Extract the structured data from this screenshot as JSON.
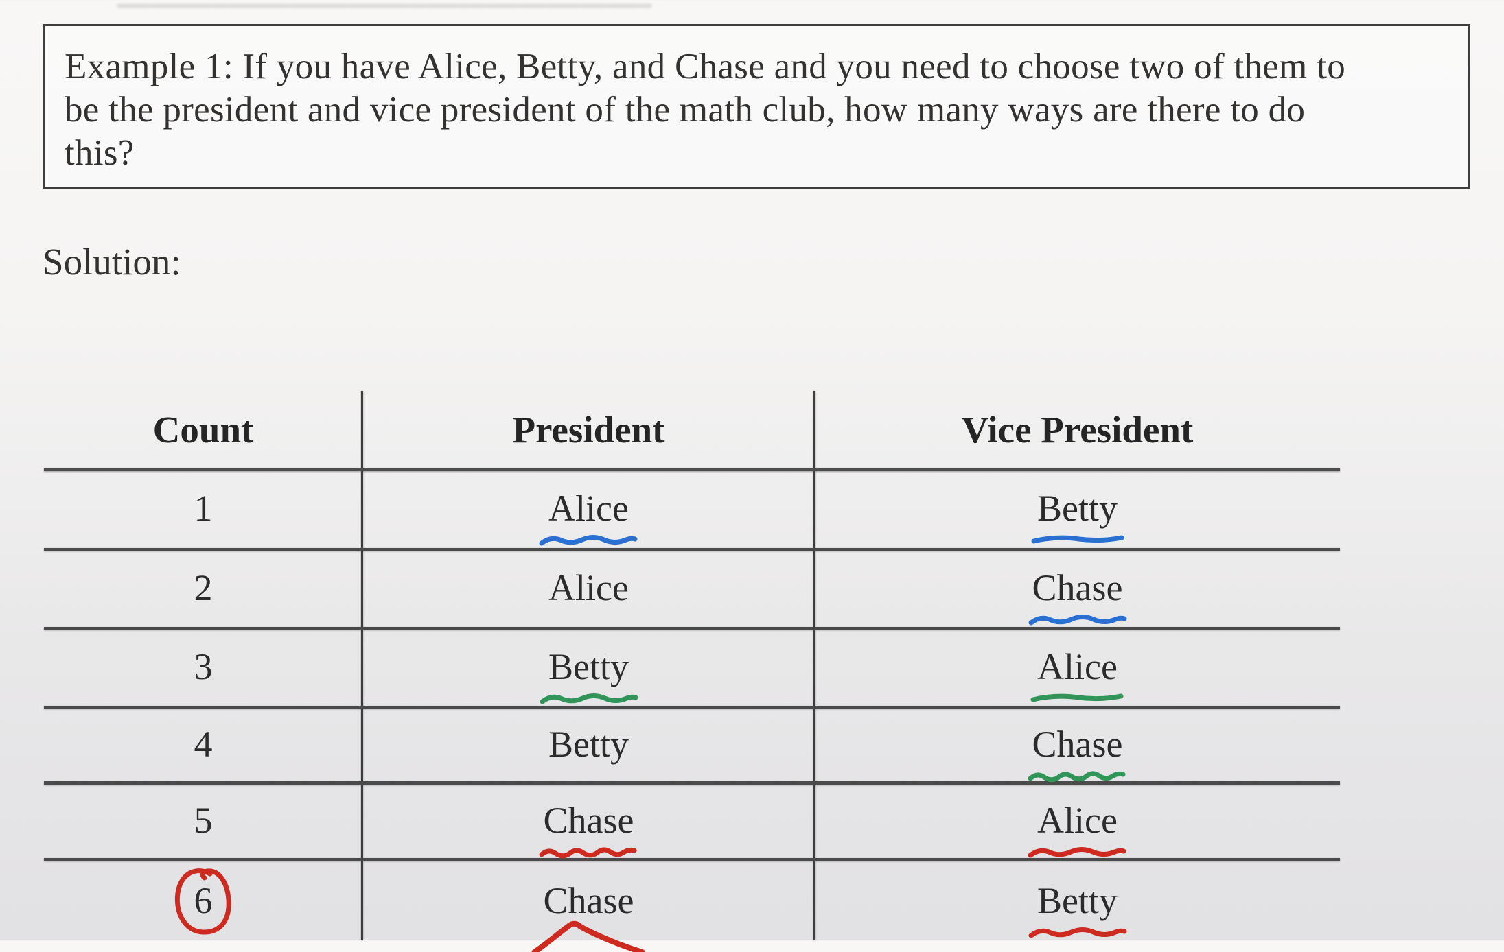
{
  "question_box": {
    "lines": [
      "Example 1: If you have Alice, Betty, and Chase and you need to choose two of them to",
      "be the president and vice president of the math club, how many ways are there to do",
      "this?"
    ]
  },
  "solution_label": "Solution:",
  "table": {
    "headers": [
      "Count",
      "President",
      "Vice President"
    ],
    "annotation_colors": {
      "blue": "#2a6fd2",
      "green": "#31955a",
      "red": "#cd2a20"
    },
    "rows": [
      {
        "count": "1",
        "count_mark": null,
        "president": {
          "text": "Alice",
          "mark": {
            "shape": "wave2",
            "color": "blue"
          }
        },
        "vice_president": {
          "text": "Betty",
          "mark": {
            "shape": "flat",
            "color": "blue"
          }
        }
      },
      {
        "count": "2",
        "count_mark": null,
        "president": {
          "text": "Alice",
          "mark": null
        },
        "vice_president": {
          "text": "Chase",
          "mark": {
            "shape": "wave2",
            "color": "blue"
          }
        }
      },
      {
        "count": "3",
        "count_mark": null,
        "president": {
          "text": "Betty",
          "mark": {
            "shape": "wave2",
            "color": "green"
          }
        },
        "vice_president": {
          "text": "Alice",
          "mark": {
            "shape": "flat",
            "color": "green"
          }
        }
      },
      {
        "count": "4",
        "count_mark": null,
        "president": {
          "text": "Betty",
          "mark": null
        },
        "vice_president": {
          "text": "Chase",
          "mark": {
            "shape": "wave3",
            "color": "green"
          }
        }
      },
      {
        "count": "5",
        "count_mark": null,
        "president": {
          "text": "Chase",
          "mark": {
            "shape": "wave3",
            "color": "red"
          }
        },
        "vice_president": {
          "text": "Alice",
          "mark": {
            "shape": "wave2",
            "color": "red"
          }
        }
      },
      {
        "count": "6",
        "count_mark": {
          "shape": "circle",
          "color": "red"
        },
        "president": {
          "text": "Chase",
          "mark": {
            "shape": "peak",
            "color": "red"
          }
        },
        "vice_president": {
          "text": "Betty",
          "mark": {
            "shape": "wave2",
            "color": "red"
          }
        }
      }
    ]
  }
}
